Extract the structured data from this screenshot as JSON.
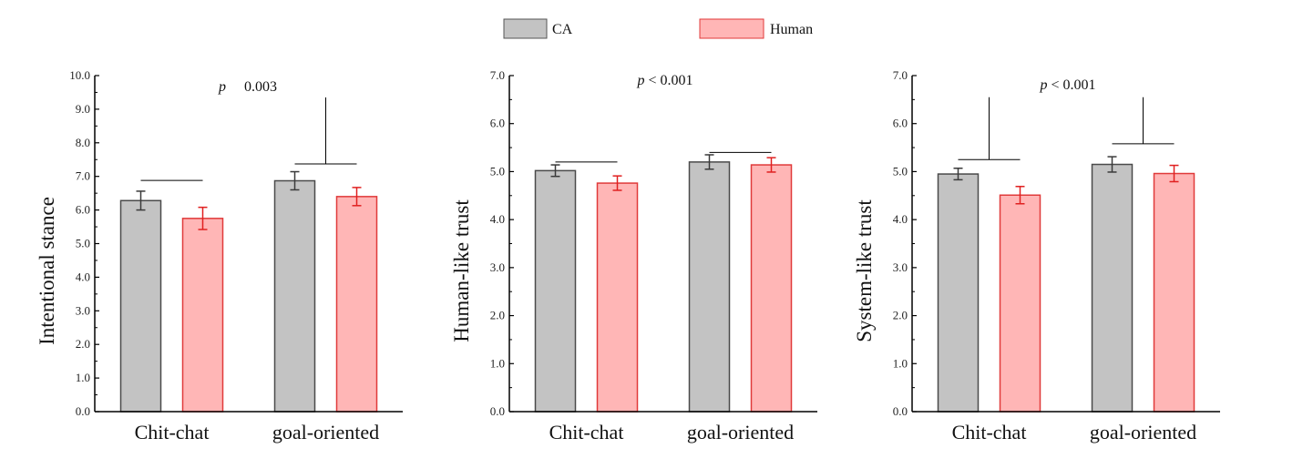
{
  "legend": {
    "items": [
      {
        "label": "CA",
        "fill": "#c3c3c3",
        "stroke": "#555555"
      },
      {
        "label": "Human",
        "fill": "#ffb6b6",
        "stroke": "#e03a3a"
      }
    ]
  },
  "chart_data": [
    {
      "type": "bar",
      "ylabel": "Intentional stance",
      "categories": [
        "Chit-chat",
        "goal-oriented"
      ],
      "ylim": [
        0,
        10
      ],
      "yticks": [
        "0.0",
        "1.0",
        "2.0",
        "3.0",
        "4.0",
        "5.0",
        "6.0",
        "7.0",
        "8.0",
        "9.0",
        "10.0"
      ],
      "annotation": {
        "p": "p",
        "text": "0.003"
      },
      "series": [
        {
          "name": "CA",
          "values": [
            6.28,
            6.87
          ],
          "errors": [
            0.28,
            0.27
          ]
        },
        {
          "name": "Human",
          "values": [
            5.75,
            6.4
          ],
          "errors": [
            0.33,
            0.27
          ]
        }
      ],
      "brackets": [
        {
          "level": 6.88,
          "stem_top": null
        },
        {
          "level": 7.37,
          "stem_top": 9.35
        }
      ]
    },
    {
      "type": "bar",
      "ylabel": "Human-like trust",
      "categories": [
        "Chit-chat",
        "goal-oriented"
      ],
      "ylim": [
        0,
        7
      ],
      "yticks": [
        "0.0",
        "1.0",
        "2.0",
        "3.0",
        "4.0",
        "5.0",
        "6.0",
        "7.0"
      ],
      "annotation": {
        "p": "p",
        "text": "< 0.001"
      },
      "series": [
        {
          "name": "CA",
          "values": [
            5.02,
            5.2
          ],
          "errors": [
            0.12,
            0.15
          ]
        },
        {
          "name": "Human",
          "values": [
            4.76,
            5.14
          ],
          "errors": [
            0.15,
            0.15
          ]
        }
      ],
      "brackets": [
        {
          "level": 5.2,
          "stem_top": null
        },
        {
          "level": 5.4,
          "stem_top": null
        }
      ]
    },
    {
      "type": "bar",
      "ylabel": "System-like trust",
      "categories": [
        "Chit-chat",
        "goal-oriented"
      ],
      "ylim": [
        0,
        7
      ],
      "yticks": [
        "0.0",
        "1.0",
        "2.0",
        "3.0",
        "4.0",
        "5.0",
        "6.0",
        "7.0"
      ],
      "annotation": {
        "p": "p",
        "text": "< 0.001"
      },
      "series": [
        {
          "name": "CA",
          "values": [
            4.95,
            5.15
          ],
          "errors": [
            0.12,
            0.16
          ]
        },
        {
          "name": "Human",
          "values": [
            4.51,
            4.96
          ],
          "errors": [
            0.18,
            0.17
          ]
        }
      ],
      "brackets": [
        {
          "level": 5.25,
          "stem_top": 6.55
        },
        {
          "level": 5.58,
          "stem_top": 6.55
        }
      ]
    }
  ]
}
